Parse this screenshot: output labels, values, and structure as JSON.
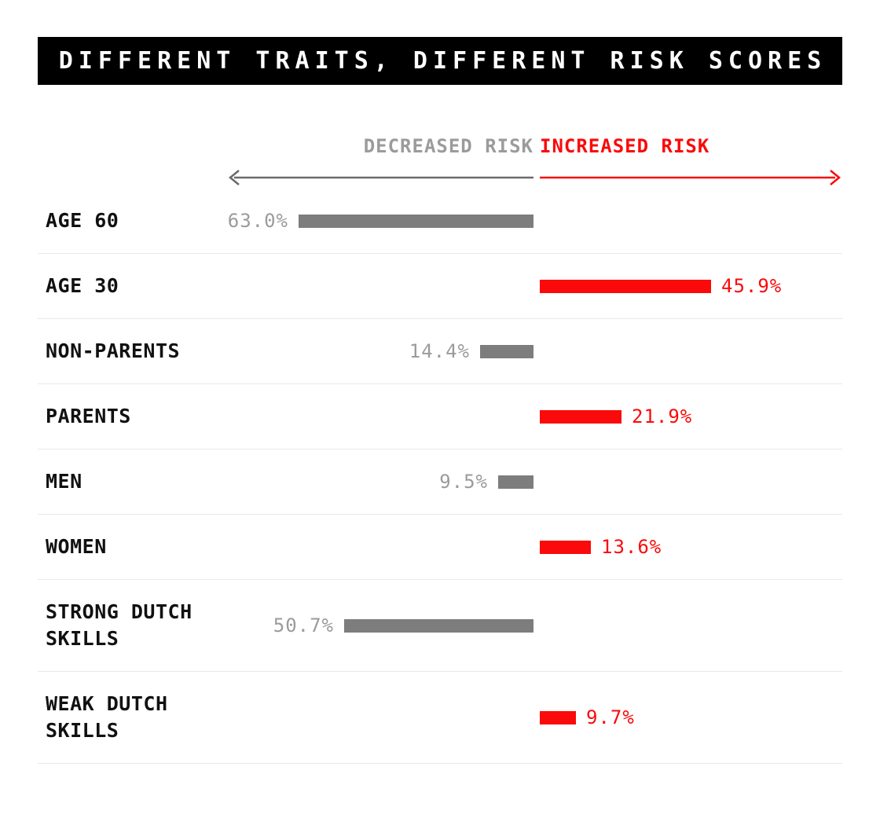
{
  "title": "DIFFERENT TRAITS, DIFFERENT RISK SCORES",
  "legend": {
    "decreased_label": "DECREASED RISK",
    "increased_label": "INCREASED RISK"
  },
  "colors": {
    "increased_red": "#fa0a0a",
    "decreased_bar_gray": "#7d7d7d",
    "decreased_text_gray": "#9b9b9b",
    "arrow_gray": "#6a6a6a",
    "label_black": "#111111",
    "divider_gray": "#e9e9e9",
    "title_bg": "#000000",
    "title_text": "#ffffff"
  },
  "chart_data": {
    "type": "bar",
    "subtype": "diverging-horizontal",
    "title": "DIFFERENT TRAITS, DIFFERENT RISK SCORES",
    "unit": "percent",
    "legend": [
      "DECREASED RISK",
      "INCREASED RISK"
    ],
    "legend_position": "top-center",
    "grid": false,
    "categories": [
      "AGE 60",
      "AGE 30",
      "NON-PARENTS",
      "PARENTS",
      "MEN",
      "WOMEN",
      "STRONG DUTCH SKILLS",
      "WEAK DUTCH SKILLS"
    ],
    "rows": [
      {
        "category": "AGE 60",
        "direction": "decreased",
        "value": 63.0,
        "value_label": "63.0%"
      },
      {
        "category": "AGE 30",
        "direction": "increased",
        "value": 45.9,
        "value_label": "45.9%"
      },
      {
        "category": "NON-PARENTS",
        "direction": "decreased",
        "value": 14.4,
        "value_label": "14.4%"
      },
      {
        "category": "PARENTS",
        "direction": "increased",
        "value": 21.9,
        "value_label": "21.9%"
      },
      {
        "category": "MEN",
        "direction": "decreased",
        "value": 9.5,
        "value_label": "9.5%"
      },
      {
        "category": "WOMEN",
        "direction": "increased",
        "value": 13.6,
        "value_label": "13.6%"
      },
      {
        "category": "STRONG DUTCH SKILLS",
        "direction": "decreased",
        "value": 50.7,
        "value_label": "50.7%"
      },
      {
        "category": "WEAK DUTCH SKILLS",
        "direction": "increased",
        "value": 9.7,
        "value_label": "9.7%"
      }
    ]
  }
}
